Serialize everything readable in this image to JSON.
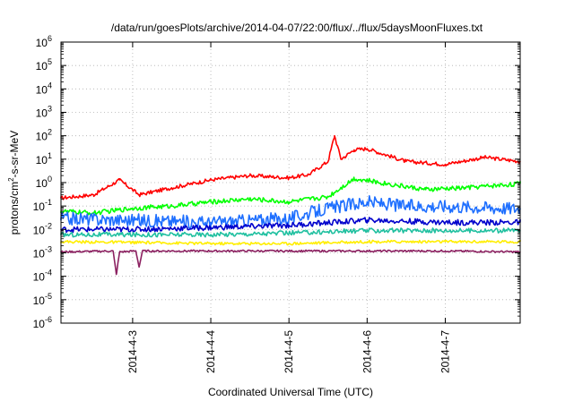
{
  "chart_data": {
    "type": "line",
    "title": "/data/run/goesPlots/archive/2014-04-07/22:00/flux/../flux/5daysMoonFluxes.txt",
    "xlabel": "Coordinated Universal Time (UTC)",
    "ylabel_parts": {
      "base": "protons/cm",
      "sup": "2",
      "tail": "-s-sr-MeV"
    },
    "x_range": [
      "2014-04-02T02:00",
      "2014-04-07T23:00"
    ],
    "x_ticks": [
      {
        "label": "2014-4-3",
        "date": "2014-04-03T00:00"
      },
      {
        "label": "2014-4-4",
        "date": "2014-04-04T00:00"
      },
      {
        "label": "2014-4-5",
        "date": "2014-04-05T00:00"
      },
      {
        "label": "2014-4-6",
        "date": "2014-04-06T00:00"
      },
      {
        "label": "2014-4-7",
        "date": "2014-04-07T00:00"
      }
    ],
    "y_scale": "log",
    "ylim": [
      1e-06,
      1000000
    ],
    "y_ticks": [
      {
        "base": "10",
        "exp": "-6"
      },
      {
        "base": "10",
        "exp": "-5"
      },
      {
        "base": "10",
        "exp": "-4"
      },
      {
        "base": "10",
        "exp": "-3"
      },
      {
        "base": "10",
        "exp": "-2"
      },
      {
        "base": "10",
        "exp": "-1"
      },
      {
        "base": "10",
        "exp": "0"
      },
      {
        "base": "10",
        "exp": "1"
      },
      {
        "base": "10",
        "exp": "2"
      },
      {
        "base": "10",
        "exp": "3"
      },
      {
        "base": "10",
        "exp": "4"
      },
      {
        "base": "10",
        "exp": "5"
      },
      {
        "base": "10",
        "exp": "6"
      }
    ],
    "grid": true,
    "series": [
      {
        "color": "#ff0000",
        "x": [
          "2014-04-02T02:00",
          "2014-04-02T12:00",
          "2014-04-02T20:00",
          "2014-04-03T02:00",
          "2014-04-03T12:00",
          "2014-04-04T00:00",
          "2014-04-04T12:00",
          "2014-04-05T00:00",
          "2014-04-05T06:00",
          "2014-04-05T12:00",
          "2014-04-05T14:00",
          "2014-04-05T16:00",
          "2014-04-05T20:00",
          "2014-04-06T00:00",
          "2014-04-06T12:00",
          "2014-04-07T00:00",
          "2014-04-07T12:00",
          "2014-04-07T23:00"
        ],
        "y": [
          0.22,
          0.3,
          1.3,
          0.3,
          0.6,
          1.3,
          2.0,
          1.6,
          2.2,
          8,
          100,
          10,
          25,
          28,
          8,
          6,
          12,
          8
        ]
      },
      {
        "color": "#00ff00",
        "x": [
          "2014-04-02T02:00",
          "2014-04-02T12:00",
          "2014-04-03T00:00",
          "2014-04-03T12:00",
          "2014-04-04T00:00",
          "2014-04-04T12:00",
          "2014-04-05T00:00",
          "2014-04-05T12:00",
          "2014-04-05T20:00",
          "2014-04-06T06:00",
          "2014-04-06T18:00",
          "2014-04-07T06:00",
          "2014-04-07T23:00"
        ],
        "y": [
          0.06,
          0.05,
          0.08,
          0.1,
          0.15,
          0.2,
          0.15,
          0.25,
          1.5,
          0.9,
          0.5,
          0.6,
          0.9
        ]
      },
      {
        "color": "#1e6fff",
        "x": [
          "2014-04-02T02:00",
          "2014-04-03T00:00",
          "2014-04-04T00:00",
          "2014-04-05T00:00",
          "2014-04-05T12:00",
          "2014-04-06T00:00",
          "2014-04-06T12:00",
          "2014-04-07T00:00",
          "2014-04-07T23:00"
        ],
        "y": [
          0.03,
          0.025,
          0.02,
          0.03,
          0.08,
          0.15,
          0.1,
          0.1,
          0.08
        ]
      },
      {
        "color": "#0000cc",
        "x": [
          "2014-04-02T02:00",
          "2014-04-03T00:00",
          "2014-04-04T00:00",
          "2014-04-05T00:00",
          "2014-04-06T00:00",
          "2014-04-07T00:00",
          "2014-04-07T23:00"
        ],
        "y": [
          0.01,
          0.01,
          0.012,
          0.015,
          0.025,
          0.02,
          0.02
        ]
      },
      {
        "color": "#20c0a0",
        "x": [
          "2014-04-02T02:00",
          "2014-04-03T00:00",
          "2014-04-04T00:00",
          "2014-04-05T00:00",
          "2014-04-06T00:00",
          "2014-04-07T00:00",
          "2014-04-07T23:00"
        ],
        "y": [
          0.006,
          0.006,
          0.006,
          0.007,
          0.009,
          0.009,
          0.009
        ]
      },
      {
        "color": "#ffee00",
        "x": [
          "2014-04-02T02:00",
          "2014-04-03T00:00",
          "2014-04-04T00:00",
          "2014-04-05T00:00",
          "2014-04-06T00:00",
          "2014-04-07T00:00",
          "2014-04-07T23:00"
        ],
        "y": [
          0.003,
          0.0028,
          0.0025,
          0.0025,
          0.003,
          0.003,
          0.003
        ]
      },
      {
        "color": "#8b2060",
        "x": [
          "2014-04-02T02:00",
          "2014-04-02T18:00",
          "2014-04-02T19:00",
          "2014-04-02T20:00",
          "2014-04-03T01:00",
          "2014-04-03T02:00",
          "2014-04-03T03:00",
          "2014-04-04T00:00",
          "2014-04-05T00:00",
          "2014-04-06T00:00",
          "2014-04-07T00:00",
          "2014-04-07T23:00"
        ],
        "y": [
          0.0011,
          0.0012,
          0.00012,
          0.0011,
          0.0012,
          0.00025,
          0.0012,
          0.0012,
          0.0012,
          0.0012,
          0.0012,
          0.0011
        ]
      }
    ]
  }
}
